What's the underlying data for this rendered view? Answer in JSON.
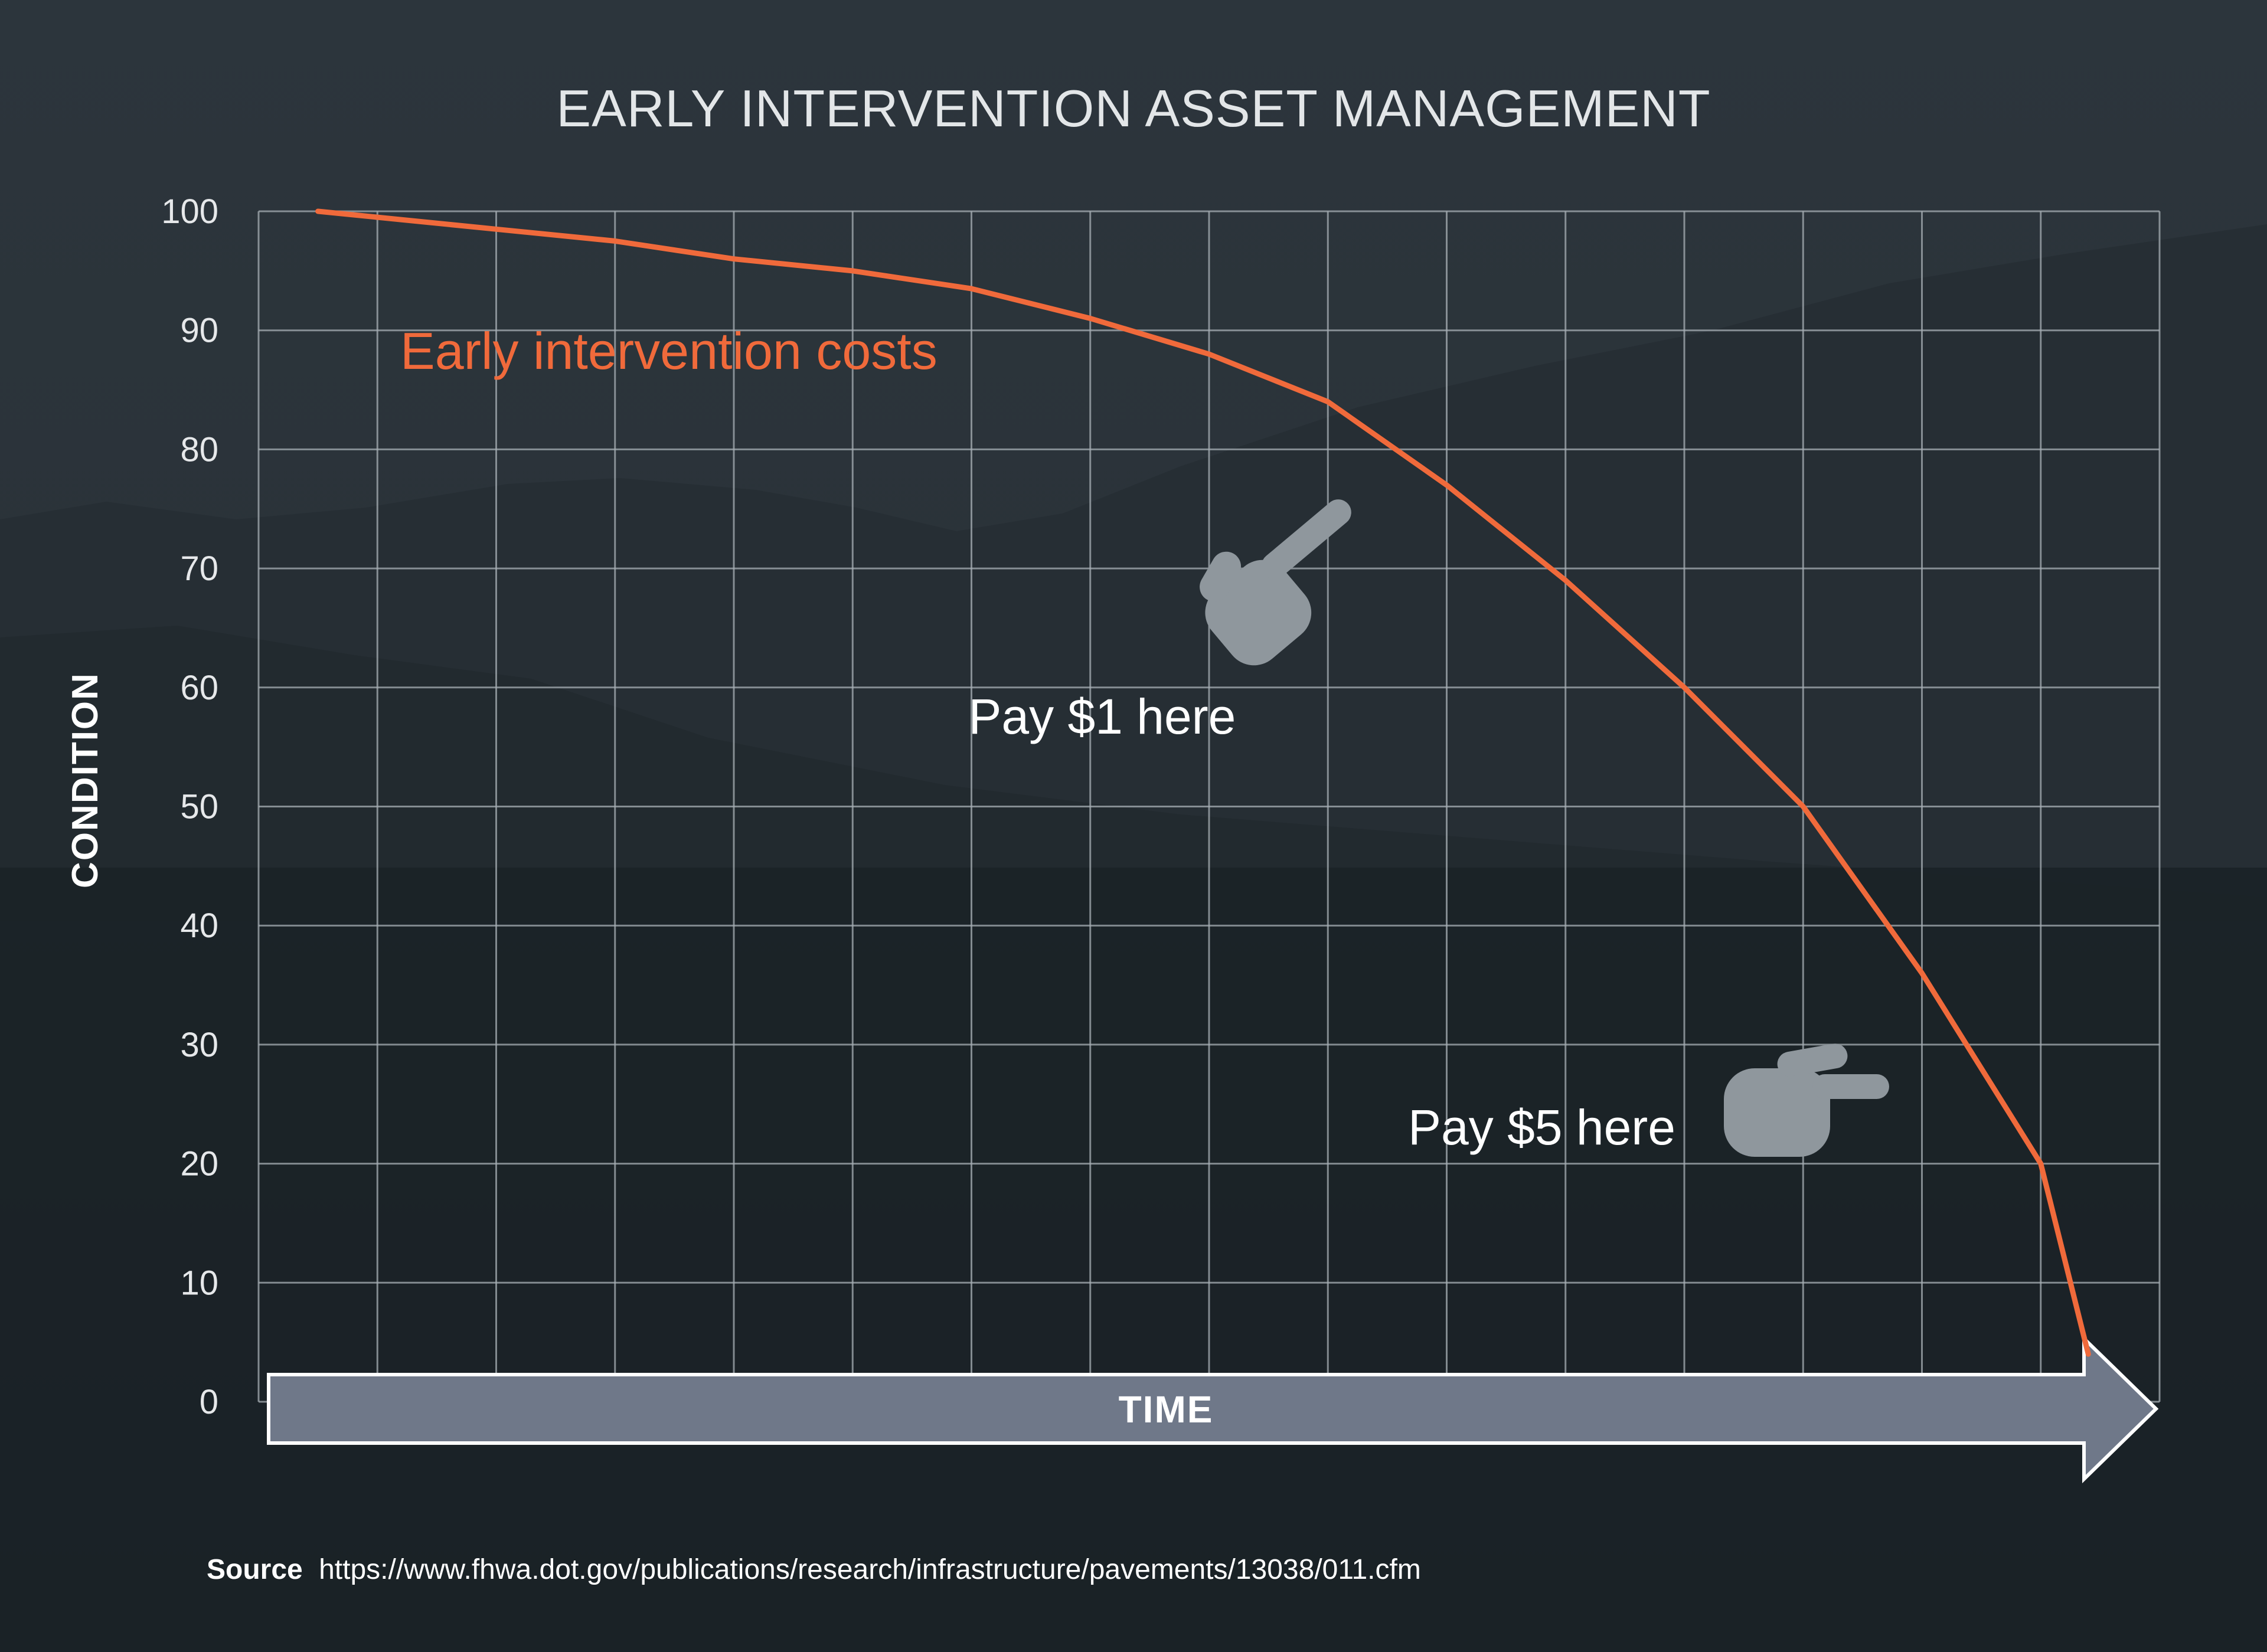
{
  "colors": {
    "series": "#f06a3b",
    "arrow_fill": "#6f7889",
    "hand_fill": "#8f979d"
  },
  "chart_data": {
    "type": "line",
    "title": "EARLY INTERVENTION ASSET MANAGEMENT",
    "xlabel": "TIME",
    "ylabel": "CONDITION",
    "ylim": [
      0,
      100
    ],
    "yticks": [
      0,
      10,
      20,
      30,
      40,
      50,
      60,
      70,
      80,
      90,
      100
    ],
    "xlim": [
      0,
      16
    ],
    "x_tick_labels": false,
    "grid": true,
    "legend": "none",
    "series": [
      {
        "name": "Early intervention costs",
        "x": [
          0.5,
          1.0,
          2.0,
          3.0,
          4.0,
          5.0,
          6.0,
          7.0,
          8.0,
          9.0,
          10.0,
          11.0,
          12.0,
          12.5,
          13.0,
          14.0,
          15.0,
          15.4
        ],
        "y": [
          100,
          99.5,
          98.5,
          97.5,
          96,
          95,
          93.5,
          91,
          88,
          84,
          77,
          69,
          60,
          55,
          50,
          36,
          20,
          4
        ]
      }
    ],
    "annotations": [
      {
        "id": "pay1",
        "text": "Pay $1 here",
        "x": 7.1,
        "y": 57.5
      },
      {
        "id": "pay5",
        "text": "Pay $5 here",
        "x": 10.8,
        "y": 23
      }
    ]
  },
  "footer": {
    "source_label": "Source",
    "source_url": "https://www.fhwa.dot.gov/publications/research/infrastructure/pavements/13038/011.cfm"
  }
}
